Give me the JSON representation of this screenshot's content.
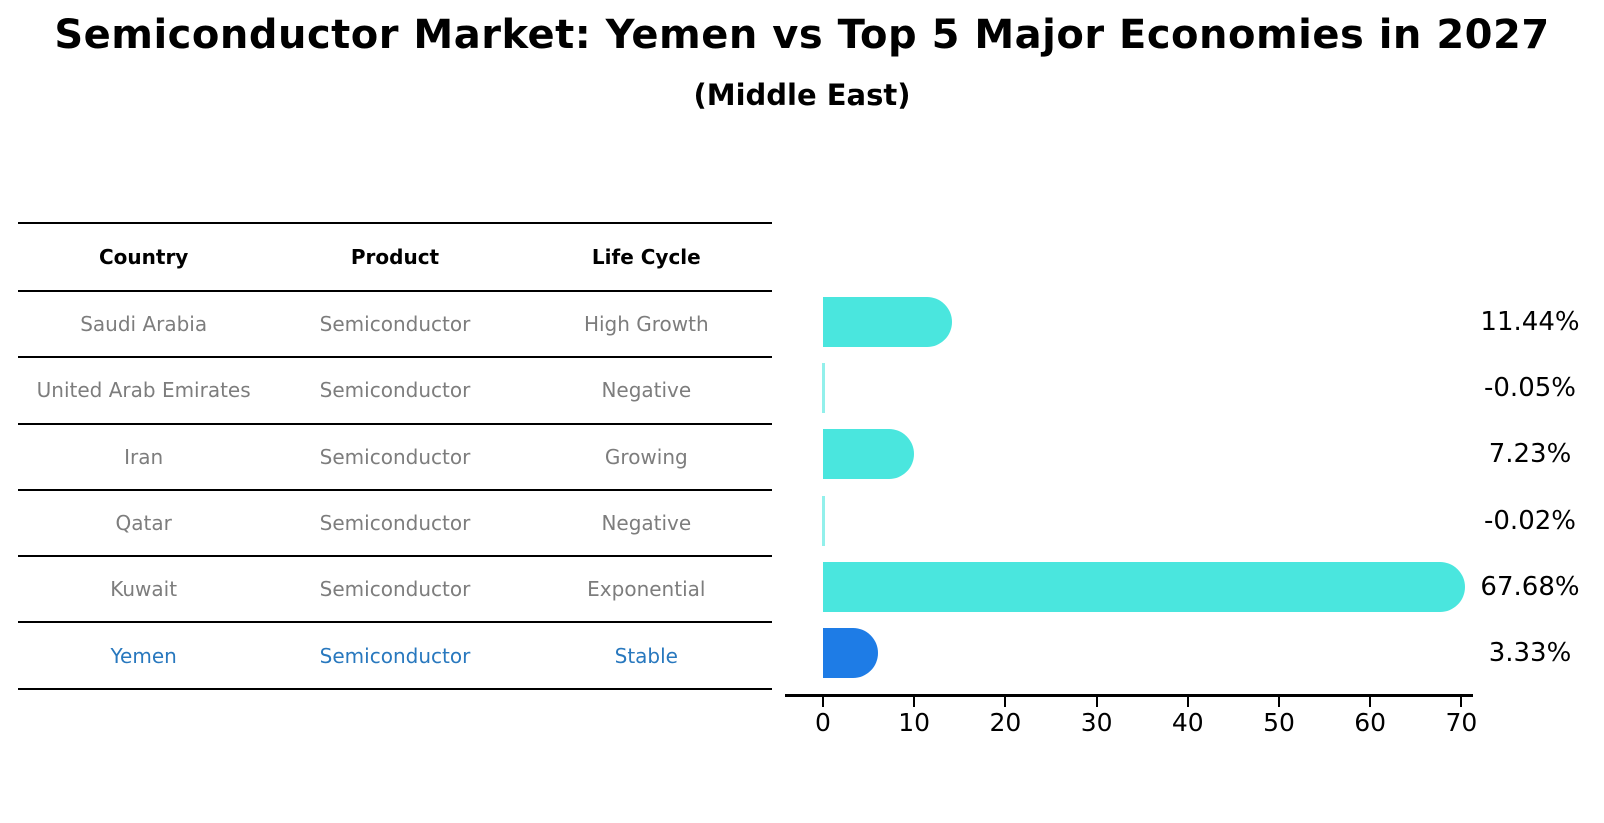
{
  "chart_data": {
    "type": "bar",
    "orientation": "horizontal",
    "title": "Semiconductor Market: Yemen vs Top 5 Major Economies in 2027",
    "subtitle": "(Middle East)",
    "categories": [
      "Saudi Arabia",
      "United Arab Emirates",
      "Iran",
      "Qatar",
      "Kuwait",
      "Yemen"
    ],
    "values": [
      11.44,
      -0.05,
      7.23,
      -0.02,
      67.68,
      3.33
    ],
    "value_labels": [
      "11.44%",
      "-0.05%",
      "7.23%",
      "-0.02%",
      "67.68%",
      "3.33%"
    ],
    "xticks": [
      "0",
      "10",
      "20",
      "30",
      "40",
      "50",
      "60",
      "70"
    ],
    "xlim": [
      0,
      71
    ],
    "grid": false,
    "legend": false,
    "bar_color": "#4ae6de",
    "highlight_bar_color": "#1e7ce6",
    "highlight_index": 5,
    "highlight_country": "Yemen"
  },
  "table": {
    "headers": [
      "Country",
      "Product",
      "Life Cycle"
    ],
    "rows": [
      {
        "country": "Saudi Arabia",
        "product": "Semiconductor",
        "life_cycle": "High Growth"
      },
      {
        "country": "United Arab Emirates",
        "product": "Semiconductor",
        "life_cycle": "Negative"
      },
      {
        "country": "Iran",
        "product": "Semiconductor",
        "life_cycle": "Growing"
      },
      {
        "country": "Qatar",
        "product": "Semiconductor",
        "life_cycle": "Negative"
      },
      {
        "country": "Kuwait",
        "product": "Semiconductor",
        "life_cycle": "Exponential"
      },
      {
        "country": "Yemen",
        "product": "Semiconductor",
        "life_cycle": "Stable"
      }
    ],
    "header_text_color": "#000000",
    "row_text_color": "#7d7d7d",
    "highlight_text_color": "#2878be"
  }
}
